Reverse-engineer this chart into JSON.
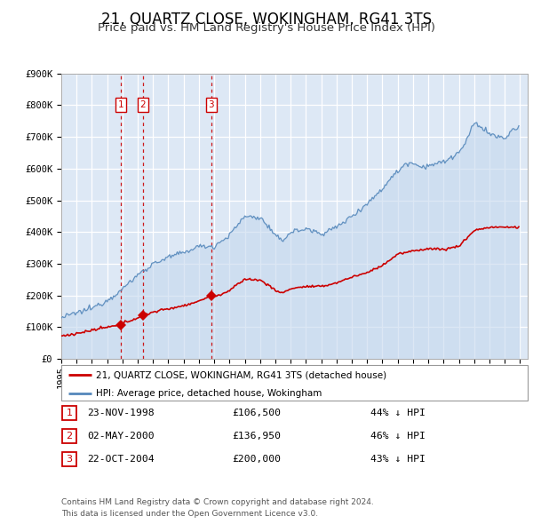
{
  "title": "21, QUARTZ CLOSE, WOKINGHAM, RG41 3TS",
  "subtitle": "Price paid vs. HM Land Registry's House Price Index (HPI)",
  "ylim": [
    0,
    900000
  ],
  "yticks": [
    0,
    100000,
    200000,
    300000,
    400000,
    500000,
    600000,
    700000,
    800000,
    900000
  ],
  "ytick_labels": [
    "£0",
    "£100K",
    "£200K",
    "£300K",
    "£400K",
    "£500K",
    "£600K",
    "£700K",
    "£800K",
    "£900K"
  ],
  "xlim_start": 1995.0,
  "xlim_end": 2025.5,
  "background_color": "#dde8f5",
  "plot_bg_color": "#dde8f5",
  "grid_color": "#ffffff",
  "red_color": "#cc0000",
  "blue_color": "#5588bb",
  "blue_fill_color": "#c5d8ee",
  "sale_dates": [
    1998.895,
    2000.336,
    2004.806
  ],
  "sale_prices": [
    106500,
    136950,
    200000
  ],
  "sale_labels": [
    "1",
    "2",
    "3"
  ],
  "legend_red_label": "21, QUARTZ CLOSE, WOKINGHAM, RG41 3TS (detached house)",
  "legend_blue_label": "HPI: Average price, detached house, Wokingham",
  "table_rows": [
    {
      "num": "1",
      "date": "23-NOV-1998",
      "price": "£106,500",
      "hpi": "44% ↓ HPI"
    },
    {
      "num": "2",
      "date": "02-MAY-2000",
      "price": "£136,950",
      "hpi": "46% ↓ HPI"
    },
    {
      "num": "3",
      "date": "22-OCT-2004",
      "price": "£200,000",
      "hpi": "43% ↓ HPI"
    }
  ],
  "footer": "Contains HM Land Registry data © Crown copyright and database right 2024.\nThis data is licensed under the Open Government Licence v3.0.",
  "title_fontsize": 12,
  "subtitle_fontsize": 9.5,
  "tick_fontsize": 7.5
}
